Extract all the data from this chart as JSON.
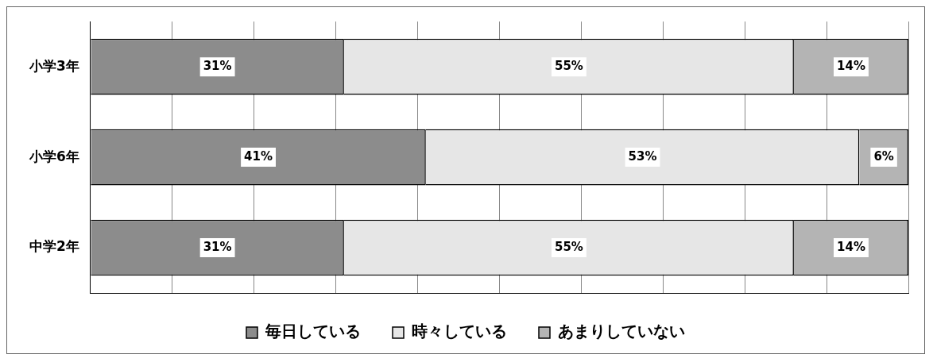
{
  "chart_data": {
    "type": "bar",
    "orientation": "horizontal",
    "stacked": true,
    "categories": [
      "小学3年",
      "小学6年",
      "中学2年"
    ],
    "series": [
      {
        "name": "毎日している",
        "color": "#8c8c8c",
        "values": [
          31,
          41,
          31
        ],
        "value_labels": [
          "31%",
          "41%",
          "31%"
        ]
      },
      {
        "name": "時々している",
        "color": "#e6e6e6",
        "values": [
          55,
          53,
          55
        ],
        "value_labels": [
          "55%",
          "53%",
          "55%"
        ]
      },
      {
        "name": "あまりしていない",
        "color": "#b4b4b4",
        "values": [
          14,
          6,
          14
        ],
        "value_labels": [
          "14%",
          "6%",
          "14%"
        ]
      }
    ],
    "xlim": [
      0,
      100
    ],
    "xticks": [
      {
        "value": 0,
        "label": null
      },
      {
        "value": 10,
        "label": null
      },
      {
        "value": 20,
        "label": null
      },
      {
        "value": 30,
        "label": null
      },
      {
        "value": 40,
        "label": null
      },
      {
        "value": 50,
        "label": null
      },
      {
        "value": 60,
        "label": null
      },
      {
        "value": 70,
        "label": null
      },
      {
        "value": 80,
        "label": null
      },
      {
        "value": 90,
        "label": null
      },
      {
        "value": 100,
        "label": null
      }
    ],
    "tick_labels": "y",
    "grid": "x",
    "legend": "bottom"
  }
}
